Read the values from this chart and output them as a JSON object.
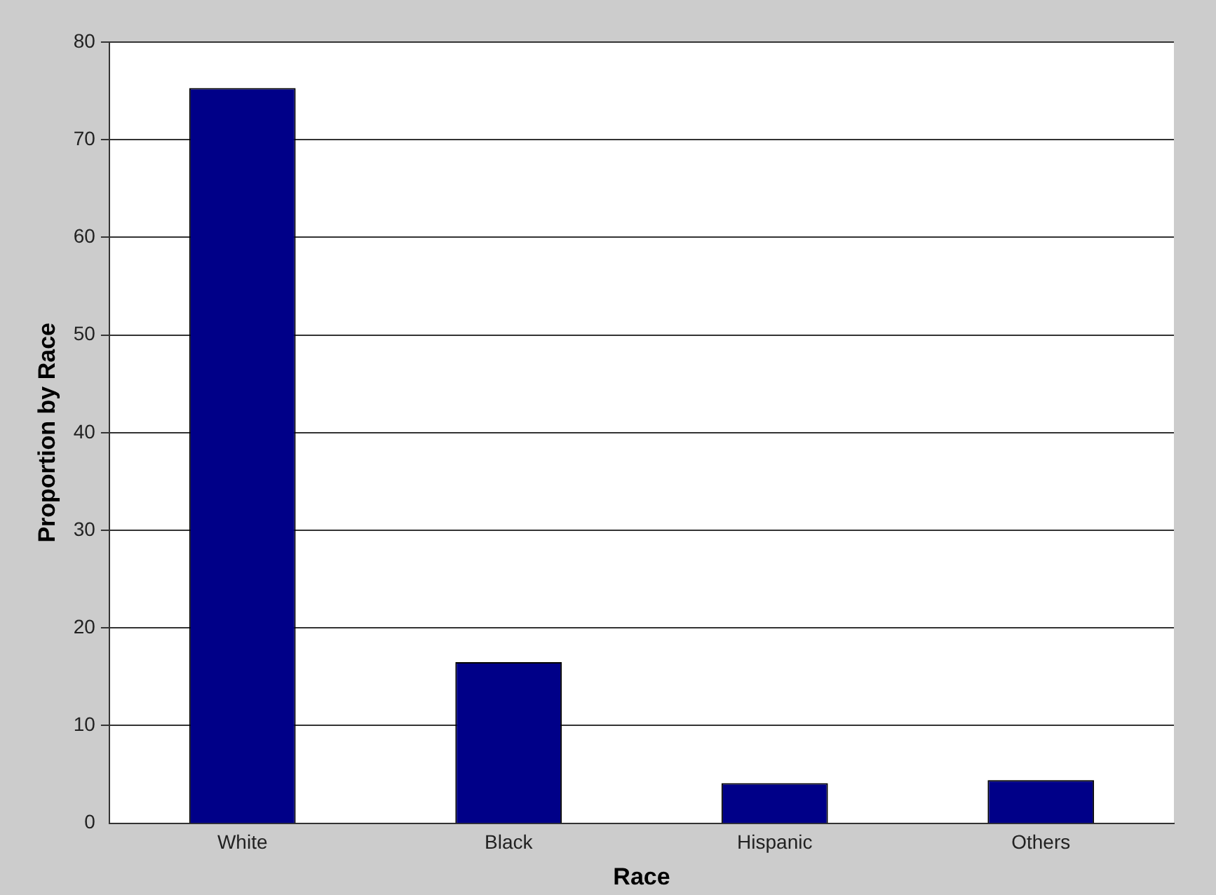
{
  "chart_data": {
    "type": "bar",
    "xlabel": "Race",
    "ylabel": "Proportion by Race",
    "categories": [
      "White",
      "Black",
      "Hispanic",
      "Others"
    ],
    "values": [
      75.3,
      16.5,
      4.1,
      4.4
    ],
    "color": "#000088",
    "ylim": [
      0,
      80
    ],
    "yticks": [
      0,
      10,
      20,
      30,
      40,
      50,
      60,
      70,
      80
    ],
    "grid": "y",
    "legend": false
  }
}
